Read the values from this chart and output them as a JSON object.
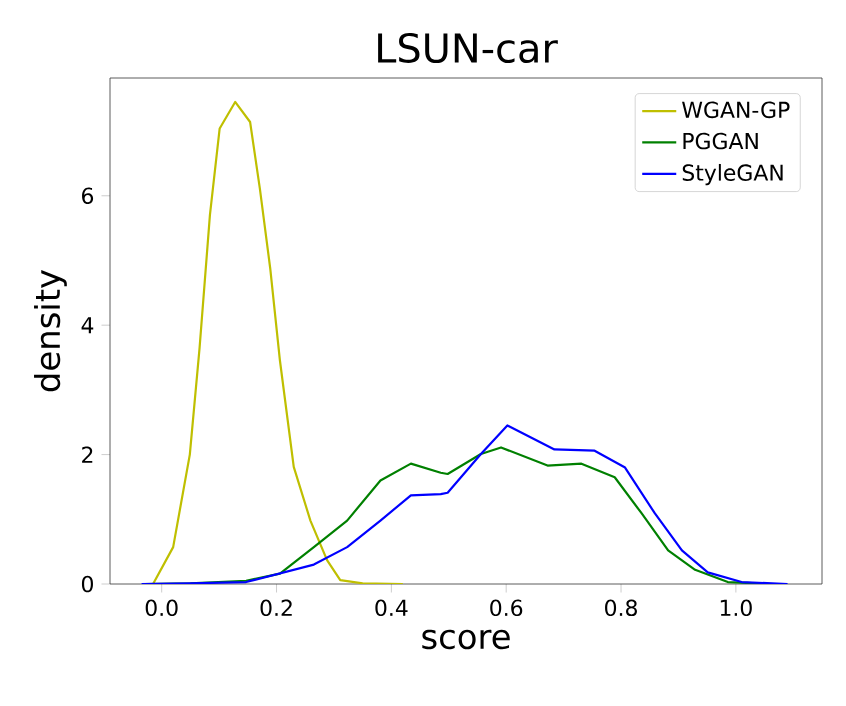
{
  "chart_data": {
    "type": "line",
    "title": "LSUN-car",
    "xlabel": "score",
    "ylabel": "density",
    "xlim": [
      -0.09,
      1.15
    ],
    "ylim": [
      0,
      7.82
    ],
    "xticks": [
      {
        "value": 0,
        "label": "0.0"
      },
      {
        "value": 0.2,
        "label": "0.2"
      },
      {
        "value": 0.4,
        "label": "0.4"
      },
      {
        "value": 0.6,
        "label": "0.6"
      },
      {
        "value": 0.8,
        "label": "0.8"
      },
      {
        "value": 1.0,
        "label": "1.0"
      }
    ],
    "yticks": [
      0,
      2,
      4,
      6
    ],
    "grid": false,
    "legend": "top right",
    "marker": "none",
    "line_style": "solid",
    "series": [
      {
        "name": "WGAN-GP",
        "color": "#bfbf00",
        "x": [
          -0.015,
          0.02,
          0.049,
          0.066,
          0.084,
          0.101,
          0.128,
          0.154,
          0.171,
          0.189,
          0.206,
          0.23,
          0.259,
          0.288,
          0.311,
          0.35,
          0.42
        ],
        "values": [
          0,
          0.57,
          2.0,
          3.65,
          5.7,
          7.04,
          7.45,
          7.14,
          6.11,
          4.88,
          3.45,
          1.81,
          0.98,
          0.37,
          0.06,
          0.01,
          0
        ]
      },
      {
        "name": "PGGAN",
        "color": "#008000",
        "x": [
          -0.03,
          0.05,
          0.147,
          0.206,
          0.265,
          0.323,
          0.381,
          0.434,
          0.486,
          0.498,
          0.556,
          0.591,
          0.672,
          0.731,
          0.789,
          0.836,
          0.882,
          0.929,
          0.986,
          1.06
        ],
        "values": [
          0,
          0.01,
          0.05,
          0.16,
          0.57,
          0.98,
          1.6,
          1.86,
          1.72,
          1.7,
          2.01,
          2.11,
          1.83,
          1.86,
          1.65,
          1.09,
          0.52,
          0.22,
          0.03,
          0
        ]
      },
      {
        "name": "StyleGAN",
        "color": "#0000ff",
        "x": [
          -0.035,
          0.05,
          0.147,
          0.265,
          0.323,
          0.381,
          0.434,
          0.486,
          0.498,
          0.556,
          0.602,
          0.684,
          0.754,
          0.807,
          0.859,
          0.906,
          0.951,
          1.01,
          1.09
        ],
        "values": [
          0,
          0.01,
          0.03,
          0.3,
          0.57,
          0.98,
          1.37,
          1.39,
          1.41,
          2.01,
          2.45,
          2.08,
          2.06,
          1.8,
          1.09,
          0.52,
          0.18,
          0.03,
          0
        ]
      }
    ]
  }
}
